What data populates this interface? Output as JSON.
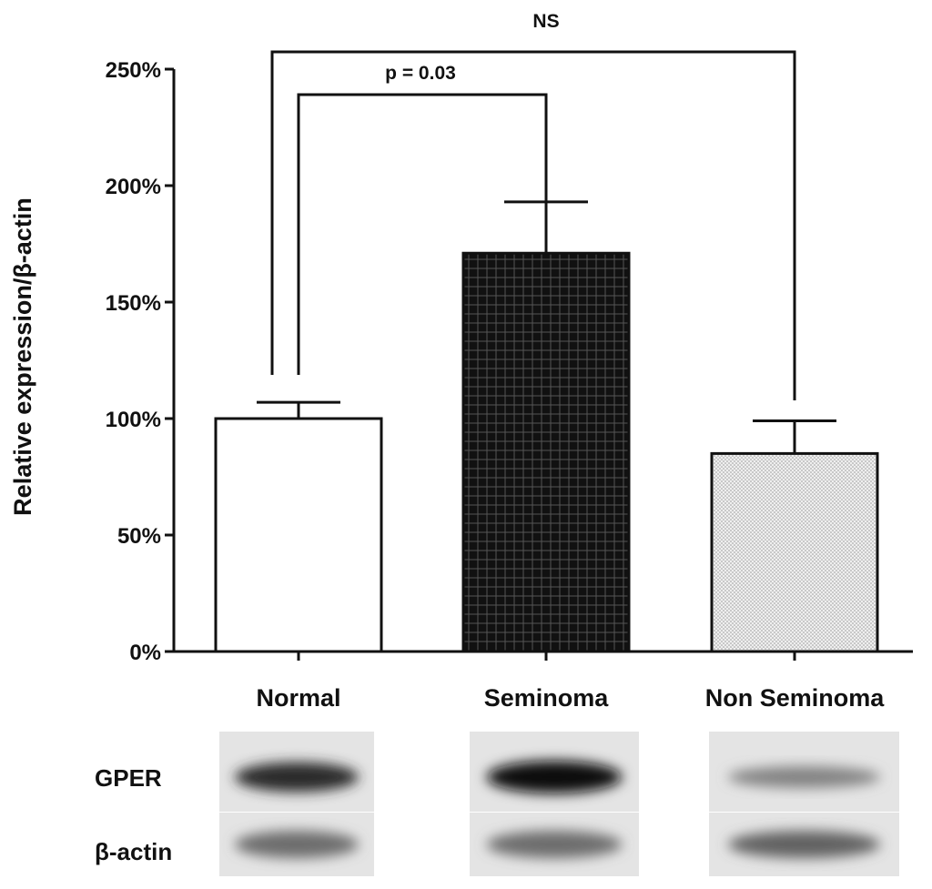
{
  "chart_data": {
    "type": "bar",
    "categories": [
      "Normal",
      "Seminoma",
      "Non Seminoma"
    ],
    "values": [
      100,
      171,
      85
    ],
    "errors": [
      7,
      22,
      14
    ],
    "fills": [
      "white",
      "dark-grid",
      "light-dots"
    ],
    "ylabel": "Relative expression/β-actin",
    "ylim": [
      0,
      250
    ],
    "yticks": [
      0,
      50,
      100,
      150,
      200,
      250
    ],
    "ytick_labels": [
      "0%",
      "50%",
      "100%",
      "150%",
      "200%",
      "250%"
    ],
    "comparisons": [
      {
        "from": "Normal",
        "to": "Non Seminoma",
        "label": "NS"
      },
      {
        "from": "Normal",
        "to": "Seminoma",
        "label": "p = 0.03"
      }
    ],
    "grid": false
  },
  "blot": {
    "rows": [
      {
        "label": "GPER",
        "intensity": [
          0.85,
          1.0,
          0.45
        ]
      },
      {
        "label": "β-actin",
        "intensity": [
          0.55,
          0.55,
          0.6
        ]
      }
    ]
  },
  "colors": {
    "axis": "#111111",
    "bar_dark": "#111111",
    "bar_light": "#e6e6e6",
    "blot_bg": "#e4e4e4"
  }
}
